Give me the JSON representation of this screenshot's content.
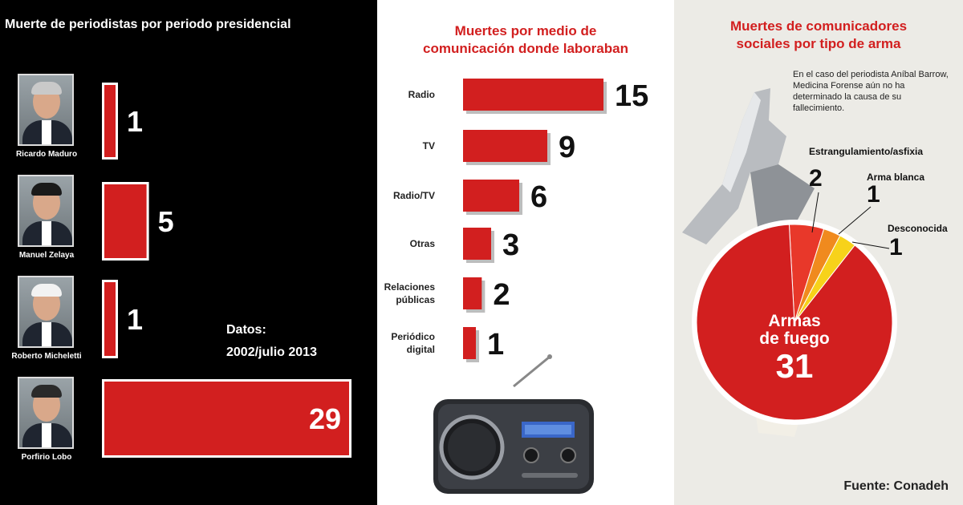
{
  "panel1": {
    "title": "Muerte de periodistas por periodo presidencial",
    "note_line1": "Datos:",
    "note_line2": "2002/julio 2013",
    "photo_icon": "portrait-photo-icon"
  },
  "panel2": {
    "title_line1": "Muertes por medio de",
    "title_line2": "comunicación donde laboraban",
    "radio_icon": "radio-device-icon"
  },
  "panel3": {
    "title_line1": "Muertes de comunicadores",
    "title_line2": "sociales por tipo de arma",
    "note": "En el caso del periodista Aníbal Barrow, Medicina Forense aún no ha determinado la causa de su fallecimiento.",
    "source": "Fuente: Conadeh",
    "gun_icon": "revolver-icon"
  },
  "colors": {
    "bar_red": "#d21f1f",
    "pie_main": "#d21f1f",
    "pie_second": "#e8382a",
    "pie_third": "#f08a1e",
    "pie_fourth": "#f7d21a"
  },
  "chart_data": [
    {
      "type": "bar",
      "orientation": "horizontal",
      "title": "Muerte de periodistas por periodo presidencial",
      "categories": [
        "Ricardo Maduro",
        "Manuel Zelaya",
        "Roberto Micheletti",
        "Porfirio Lobo"
      ],
      "values": [
        1,
        5,
        1,
        29
      ],
      "xlim": [
        0,
        29
      ],
      "grid": false
    },
    {
      "type": "bar",
      "orientation": "horizontal",
      "title": "Muertes por medio de comunicación donde laboraban",
      "categories": [
        "Radio",
        "TV",
        "Radio/TV",
        "Otras",
        "Relaciones públicas",
        "Periódico digital"
      ],
      "values": [
        15,
        9,
        6,
        3,
        2,
        1
      ],
      "xlim": [
        0,
        15
      ],
      "grid": false
    },
    {
      "type": "pie",
      "title": "Muertes de comunicadores sociales por tipo de arma",
      "labels": [
        "Armas de fuego",
        "Estrangulamiento/asfixia",
        "Arma blanca",
        "Desconocida"
      ],
      "values": [
        31,
        2,
        1,
        1
      ]
    }
  ]
}
